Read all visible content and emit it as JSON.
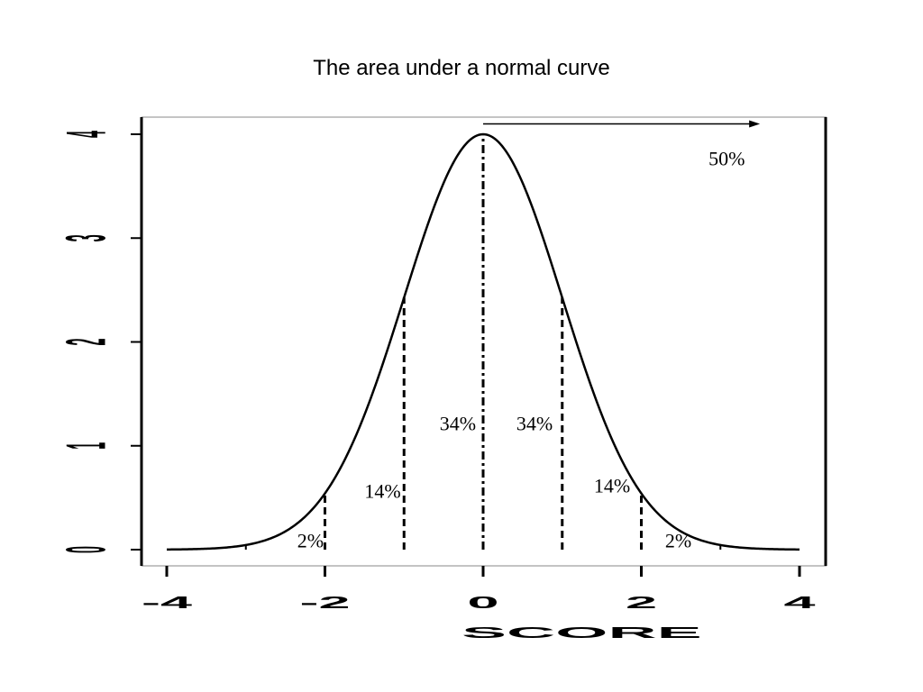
{
  "chart_data": {
    "type": "line",
    "title": "The area under a normal curve",
    "xlabel": "SCORE",
    "ylabel": "",
    "xlim": [
      -4,
      4
    ],
    "ylim": [
      0,
      4
    ],
    "x_ticks": [
      -4,
      -2,
      0,
      2,
      4
    ],
    "x_tick_labels": [
      "-4",
      "-2",
      "0",
      "2",
      "4"
    ],
    "y_ticks": [
      0,
      1,
      2,
      3,
      4
    ],
    "y_tick_labels": [
      "0",
      "1",
      "2",
      "3",
      "4"
    ],
    "series": [
      {
        "curve": "normal",
        "mean": 0,
        "sd": 1,
        "peak": 4
      }
    ],
    "boundaries": [
      -2,
      -1,
      0,
      1,
      2
    ],
    "annotations": [
      {
        "text": "50%",
        "x": 2.85,
        "y": 3.7
      },
      {
        "text": "34%",
        "x": -0.55,
        "y": 1.15
      },
      {
        "text": "34%",
        "x": 0.42,
        "y": 1.15
      },
      {
        "text": "14%",
        "x": -1.5,
        "y": 0.5
      },
      {
        "text": "14%",
        "x": 1.4,
        "y": 0.55
      },
      {
        "text": "2%",
        "x": -2.35,
        "y": 0.02
      },
      {
        "text": "2%",
        "x": 2.3,
        "y": 0.02
      }
    ],
    "arrow": {
      "from_x": 0,
      "to_x": 3.5,
      "y": 4.1
    },
    "grid": false
  }
}
